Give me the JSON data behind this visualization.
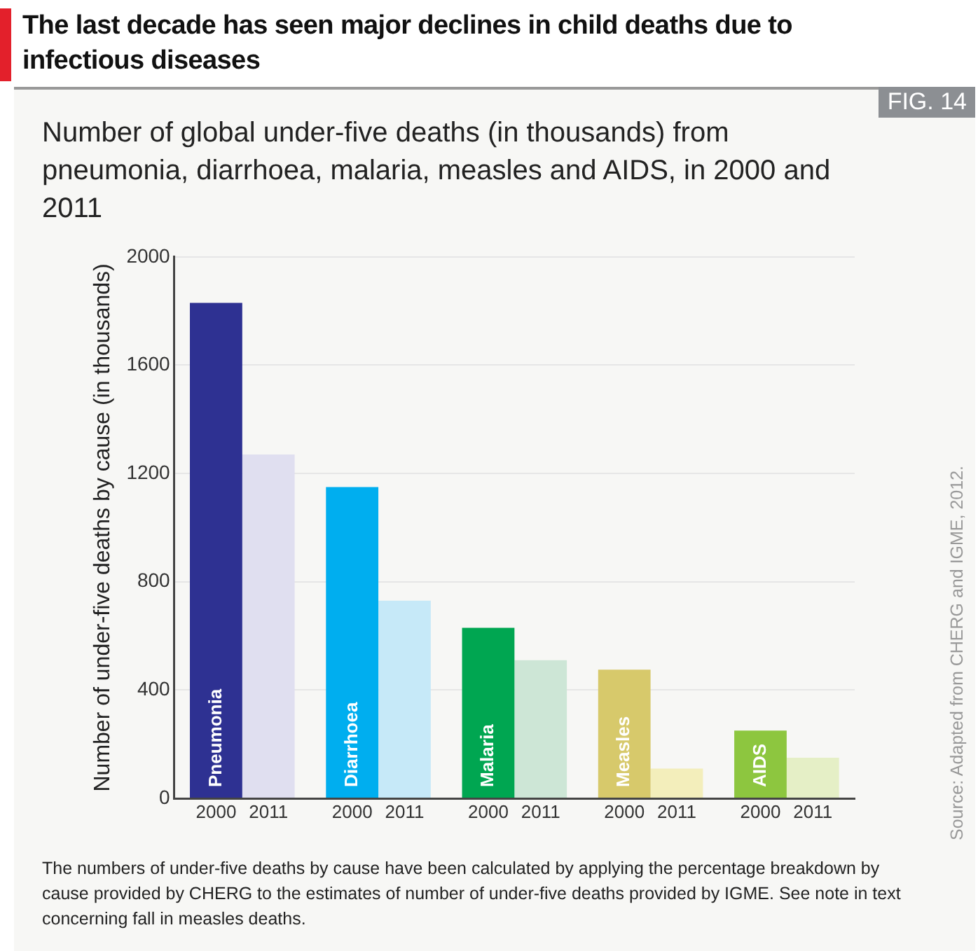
{
  "chart_data": {
    "type": "bar",
    "title": "The last decade has seen major declines in child deaths due to infectious diseases",
    "subtitle": "Number of global under-five deaths (in thousands) from pneumonia, diarrhoea, malaria, measles and AIDS, in 2000 and 2011",
    "ylabel": "Number of under-five deaths by cause (in thousands)",
    "categories": [
      "Pneumonia",
      "Diarrhoea",
      "Malaria",
      "Measles",
      "AIDS"
    ],
    "series": [
      {
        "name": "2000",
        "colors": [
          "#2e3192",
          "#00aeef",
          "#00a651",
          "#d7c96b",
          "#8dc63f"
        ],
        "values": [
          1830,
          1150,
          630,
          475,
          250
        ]
      },
      {
        "name": "2011",
        "colors": [
          "#e0dff0",
          "#c6e9f8",
          "#cde6d6",
          "#f3eebb",
          "#e5efc6"
        ],
        "values": [
          1270,
          730,
          510,
          110,
          150
        ]
      }
    ],
    "ylim": [
      0,
      2000
    ],
    "yticks": [
      0,
      400,
      800,
      1200,
      1600,
      2000
    ],
    "grid": "y",
    "annotations": [
      "FIG. 14",
      "The numbers of under-five deaths by cause have been calculated by applying the percentage breakdown by cause provided by CHERG to the estimates of number of under-five deaths provided by IGME. See note in text concerning fall in measles deaths.",
      "Source: Adapted from CHERG and IGME, 2012."
    ]
  }
}
